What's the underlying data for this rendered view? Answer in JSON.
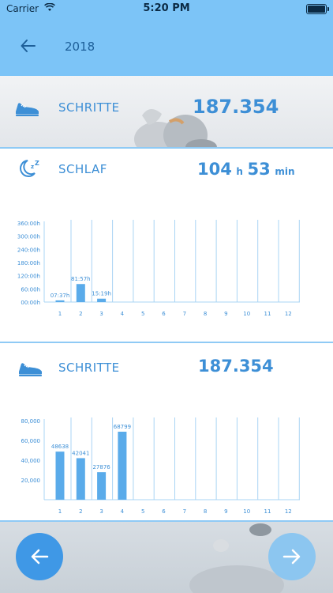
{
  "status": {
    "carrier": "Carrier",
    "time": "5:20 PM"
  },
  "nav": {
    "title": "2018"
  },
  "steps_summary": {
    "label": "SCHRITTE",
    "value": "187.354"
  },
  "sleep": {
    "label": "SCHLAF",
    "hours": "104",
    "hours_unit": "h",
    "minutes": "53",
    "minutes_unit": "min"
  },
  "steps": {
    "label": "SCHRITTE",
    "value": "187.354"
  },
  "colors": {
    "accent": "#3d8fd6",
    "header": "#7cc4f7",
    "bar": "#5aabea",
    "prev_button": "#3f98e6",
    "next_button": "#8cc6f0"
  },
  "icons": {
    "back": "arrow-left-icon",
    "steps": "sneaker-icon",
    "sleep": "moon-zz-icon",
    "prev": "arrow-left-icon",
    "next": "arrow-right-icon"
  },
  "chart_data": [
    {
      "type": "bar",
      "categories": [
        "1",
        "2",
        "3",
        "4",
        "5",
        "6",
        "7",
        "8",
        "9",
        "10",
        "11",
        "12"
      ],
      "values": [
        7.62,
        81.95,
        15.32,
        0,
        0,
        0,
        0,
        0,
        0,
        0,
        0,
        0
      ],
      "data_labels": [
        "07:37h",
        "81:57h",
        "15:19h",
        "",
        "",
        "",
        "",
        "",
        "",
        "",
        "",
        ""
      ],
      "y_ticks": [
        "00:00h",
        "60:00h",
        "120:00h",
        "180:00h",
        "240:00h",
        "300:00h",
        "360:00h"
      ],
      "ylim": [
        0,
        360
      ]
    },
    {
      "type": "bar",
      "categories": [
        "1",
        "2",
        "3",
        "4",
        "5",
        "6",
        "7",
        "8",
        "9",
        "10",
        "11",
        "12"
      ],
      "values": [
        48638,
        42041,
        27876,
        68799,
        0,
        0,
        0,
        0,
        0,
        0,
        0,
        0
      ],
      "data_labels": [
        "48638",
        "42041",
        "27876",
        "68799",
        "",
        "",
        "",
        "",
        "",
        "",
        "",
        ""
      ],
      "y_ticks": [
        "20,000",
        "40,000",
        "60,000",
        "80,000"
      ],
      "ylim": [
        0,
        80000
      ]
    }
  ]
}
